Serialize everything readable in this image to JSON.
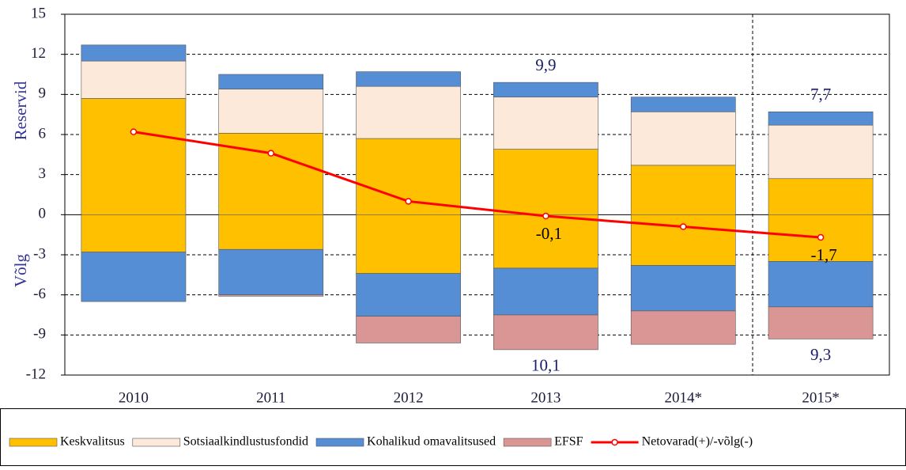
{
  "chart_data": {
    "type": "stacked-bar-line",
    "categories": [
      "2010",
      "2011",
      "2012",
      "2013",
      "2014*",
      "2015*"
    ],
    "ylabel_positive": "Reservid",
    "ylabel_negative": "Võlg",
    "ylim": [
      -12,
      15
    ],
    "yticks": [
      -12,
      -9,
      -6,
      -3,
      0,
      3,
      6,
      9,
      12,
      15
    ],
    "grid": true,
    "series": [
      {
        "name": "Keskvalitsus",
        "color": "#ffc000",
        "values": [
          8.7,
          6.1,
          5.7,
          4.9,
          3.7,
          2.7
        ],
        "debt_values": [
          -2.8,
          -2.6,
          -4.4,
          -4.0,
          -3.8,
          -3.5
        ]
      },
      {
        "name": "Sotsiaalkindlustusfondid",
        "color": "#fde9d9",
        "values": [
          2.8,
          3.3,
          3.9,
          3.9,
          4.0,
          4.0
        ],
        "debt_values": [
          0,
          0,
          0,
          0,
          0,
          0
        ]
      },
      {
        "name": "Kohalikud omavalitsused",
        "color": "#558ed5",
        "values": [
          1.2,
          1.1,
          1.1,
          1.1,
          1.1,
          1.0
        ],
        "debt_values": [
          -3.7,
          -3.4,
          -3.2,
          -3.5,
          -3.4,
          -3.4
        ]
      },
      {
        "name": "EFSF",
        "color": "#d99694",
        "values": [
          0,
          0,
          0,
          0,
          0,
          0
        ],
        "debt_values": [
          0,
          -0.1,
          -2.0,
          -2.6,
          -2.5,
          -2.4
        ]
      }
    ],
    "total_labels": {
      "positive": [
        null,
        null,
        null,
        "9,9",
        null,
        "7,7"
      ],
      "negative": [
        null,
        null,
        null,
        "10,1",
        null,
        "9,3"
      ]
    },
    "line": {
      "name": "Netovarad(+)/-võlg(-)",
      "color": "#ff0000",
      "values": [
        6.2,
        4.6,
        1.0,
        -0.1,
        -0.9,
        -1.7
      ],
      "value_labels": [
        null,
        null,
        null,
        "-0,1",
        null,
        "-1,7"
      ]
    }
  }
}
